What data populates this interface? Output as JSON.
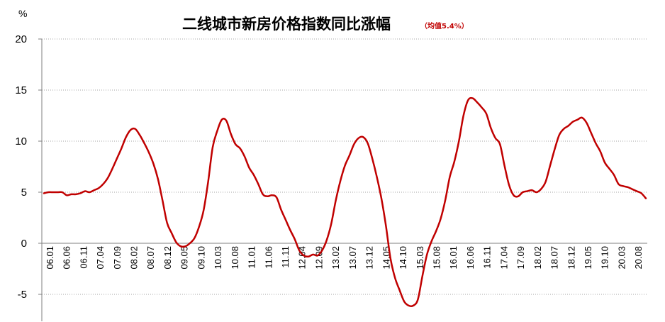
{
  "chart_data": {
    "type": "line",
    "title": "二线城市新房价格指数同比涨幅",
    "subtitle": "（均值5.4%）",
    "ylabel": "%",
    "xlabel": "",
    "ylim": [
      -6,
      20
    ],
    "yticks": [
      -5,
      0,
      5,
      10,
      15,
      20
    ],
    "grid": "horizontal dotted",
    "legend": "none",
    "line_color": "#c00000",
    "xtick_labels": [
      "06.01",
      "06.06",
      "06.11",
      "07.04",
      "07.09",
      "08.02",
      "08.07",
      "08.12",
      "09.05",
      "09.10",
      "10.03",
      "10.08",
      "11.01",
      "11.06",
      "11.11",
      "12.04",
      "12.09",
      "13.02",
      "13.07",
      "13.12",
      "14.05",
      "14.10",
      "15.03",
      "15.08",
      "16.01",
      "16.06",
      "16.11",
      "17.04",
      "17.09",
      "18.02",
      "18.07",
      "18.12",
      "19.05",
      "19.10",
      "20.03",
      "20.08"
    ],
    "series": [
      {
        "values": [
          4.9,
          5.0,
          5.0,
          5.0,
          5.0,
          4.7,
          4.8,
          4.8,
          4.9,
          5.1,
          5.0,
          5.2,
          5.4,
          5.8,
          6.4,
          7.3,
          8.3,
          9.3,
          10.4,
          11.1,
          11.2,
          10.6,
          9.8,
          8.9,
          7.8,
          6.3,
          4.2,
          2.0,
          1.0,
          0.1,
          -0.3,
          -0.3,
          0.0,
          0.5,
          1.6,
          3.2,
          6.0,
          9.4,
          11.0,
          12.1,
          12.0,
          10.7,
          9.7,
          9.3,
          8.5,
          7.4,
          6.7,
          5.8,
          4.8,
          4.6,
          4.7,
          4.5,
          3.3,
          2.3,
          1.3,
          0.4,
          -0.7,
          -1.2,
          -1.3,
          -1.1,
          -1.2,
          -0.7,
          0.3,
          1.9,
          4.2,
          6.1,
          7.6,
          8.6,
          9.7,
          10.3,
          10.4,
          9.8,
          8.3,
          6.5,
          4.4,
          1.7,
          -1.5,
          -3.4,
          -4.6,
          -5.7,
          -6.1,
          -6.1,
          -5.5,
          -3.2,
          -1.1,
          0.2,
          1.2,
          2.4,
          4.2,
          6.5,
          8.0,
          10.0,
          12.5,
          14.0,
          14.2,
          13.8,
          13.3,
          12.7,
          11.3,
          10.3,
          9.7,
          7.6,
          5.7,
          4.7,
          4.6,
          5.0,
          5.1,
          5.2,
          5.0,
          5.3,
          6.0,
          7.6,
          9.2,
          10.6,
          11.2,
          11.5,
          11.9,
          12.1,
          12.3,
          11.8,
          10.8,
          9.8,
          9.0,
          7.9,
          7.3,
          6.7,
          5.8,
          5.6,
          5.5,
          5.3,
          5.1,
          4.9,
          4.4
        ]
      }
    ]
  }
}
